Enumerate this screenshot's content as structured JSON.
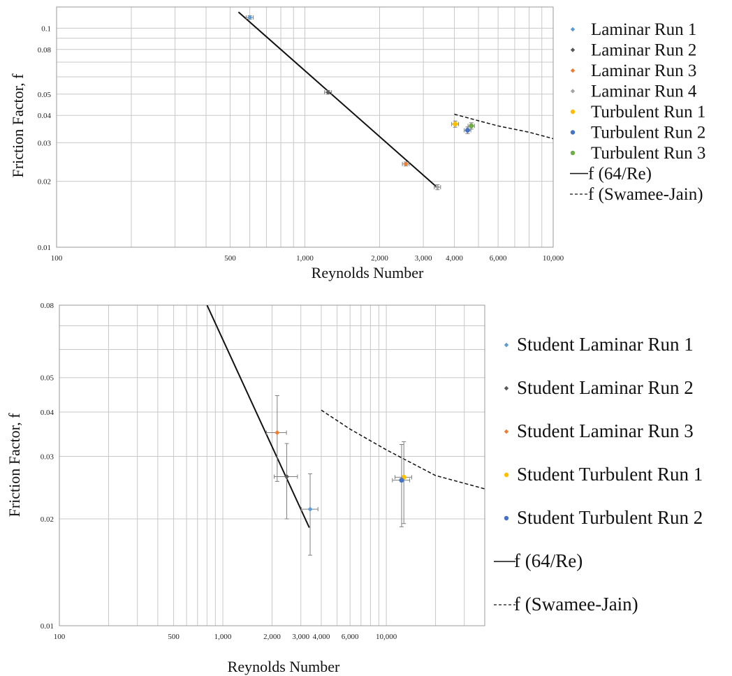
{
  "chart_data": [
    {
      "type": "scatter",
      "xlabel": "Reynolds Number",
      "ylabel": "Friction Factor, f",
      "xscale": "log",
      "yscale": "log",
      "xlim": [
        100,
        10000
      ],
      "ylim": [
        0.01,
        0.125
      ],
      "x_ticks": [
        100,
        500,
        1000,
        2000,
        3000,
        4000,
        6000,
        10000
      ],
      "x_tick_labels": [
        "100",
        "500",
        "1,000",
        "2,000",
        "3,000",
        "4,000",
        "6,000",
        "10,000"
      ],
      "y_ticks": [
        0.01,
        0.02,
        0.03,
        0.04,
        0.05,
        0.08,
        0.1
      ],
      "y_tick_labels": [
        "0.01",
        "0.02",
        "0.03",
        "0.04",
        "0.05",
        "0.08",
        "0.1"
      ],
      "grid": true,
      "legend_position": "right",
      "series": [
        {
          "name": "Laminar Run 1",
          "color": "#5b9bd5",
          "marker": "diamond",
          "points": [
            {
              "x": 600,
              "y": 0.112,
              "xerr": 20,
              "yerr": 0.002
            }
          ]
        },
        {
          "name": "Laminar Run 2",
          "color": "#595959",
          "marker": "diamond",
          "points": [
            {
              "x": 1240,
              "y": 0.051,
              "xerr": 40,
              "yerr": 0.001
            }
          ]
        },
        {
          "name": "Laminar Run 3",
          "color": "#ed7d31",
          "marker": "diamond",
          "points": [
            {
              "x": 2550,
              "y": 0.024,
              "xerr": 80,
              "yerr": 0.0005
            }
          ]
        },
        {
          "name": "Laminar Run 4",
          "color": "#a5a5a5",
          "marker": "diamond",
          "points": [
            {
              "x": 3420,
              "y": 0.0188,
              "xerr": 100,
              "yerr": 0.0005
            }
          ]
        },
        {
          "name": "Turbulent Run 1",
          "color": "#ffc000",
          "marker": "circle",
          "points": [
            {
              "x": 4030,
              "y": 0.0365,
              "xerr": 130,
              "yerr": 0.0012
            }
          ]
        },
        {
          "name": "Turbulent Run 2",
          "color": "#4472c4",
          "marker": "circle",
          "points": [
            {
              "x": 4520,
              "y": 0.0342,
              "xerr": 140,
              "yerr": 0.0012
            }
          ]
        },
        {
          "name": "Turbulent Run 3",
          "color": "#70ad47",
          "marker": "circle",
          "points": [
            {
              "x": 4680,
              "y": 0.0358,
              "xerr": 140,
              "yerr": 0.0012
            }
          ]
        }
      ],
      "lines": [
        {
          "name": "f (64/Re)",
          "style": "solid",
          "x": [
            540,
            3420
          ],
          "y": [
            0.1185,
            0.0187
          ]
        },
        {
          "name": "f (Swamee-Jain)",
          "style": "dashed",
          "x": [
            4000,
            5000,
            6000,
            8000,
            10000
          ],
          "y": [
            0.0405,
            0.0378,
            0.0358,
            0.0335,
            0.0313
          ]
        }
      ]
    },
    {
      "type": "scatter",
      "xlabel": "Reynolds Number",
      "ylabel": "Friction Factor, f",
      "xscale": "log",
      "yscale": "log",
      "xlim": [
        100,
        40000
      ],
      "ylim": [
        0.01,
        0.08
      ],
      "x_ticks": [
        100,
        500,
        1000,
        2000,
        3000,
        4000,
        6000,
        10000
      ],
      "x_tick_labels": [
        "100",
        "500",
        "1,000",
        "2,000",
        "3,000",
        "4,000",
        "6,000",
        "10,000"
      ],
      "y_ticks": [
        0.01,
        0.02,
        0.03,
        0.04,
        0.05,
        0.08
      ],
      "y_tick_labels": [
        "0.01",
        "0.02",
        "0.03",
        "0.04",
        "0.05",
        "0.08"
      ],
      "grid": true,
      "legend_position": "right",
      "series": [
        {
          "name": "Student Laminar Run 1",
          "color": "#5b9bd5",
          "marker": "diamond",
          "points": [
            {
              "x": 3420,
              "y": 0.0213,
              "xerr": 400,
              "yerr": 0.0055
            }
          ]
        },
        {
          "name": "Student Laminar Run 2",
          "color": "#595959",
          "marker": "diamond",
          "points": [
            {
              "x": 2460,
              "y": 0.0263,
              "xerr": 400,
              "yerr": 0.0063
            }
          ]
        },
        {
          "name": "Student Laminar Run 3",
          "color": "#ed7d31",
          "marker": "diamond",
          "points": [
            {
              "x": 2150,
              "y": 0.035,
              "xerr": 300,
              "yerr": 0.0095
            }
          ]
        },
        {
          "name": "Student Turbulent Run 1",
          "color": "#ffc000",
          "marker": "circle",
          "points": [
            {
              "x": 12800,
              "y": 0.0262,
              "xerr": 1500,
              "yerr": 0.0068
            }
          ]
        },
        {
          "name": "Student Turbulent Run 2",
          "color": "#4472c4",
          "marker": "circle",
          "points": [
            {
              "x": 12400,
              "y": 0.0257,
              "xerr": 1500,
              "yerr": 0.0067
            }
          ]
        }
      ],
      "lines": [
        {
          "name": "f (64/Re)",
          "style": "solid",
          "x": [
            800,
            3380
          ],
          "y": [
            0.08,
            0.0189
          ]
        },
        {
          "name": "f (Swamee-Jain)",
          "style": "dashed",
          "x": [
            4000,
            6000,
            10000,
            20000,
            40000
          ],
          "y": [
            0.0405,
            0.0358,
            0.0313,
            0.0265,
            0.0243
          ]
        }
      ]
    }
  ]
}
